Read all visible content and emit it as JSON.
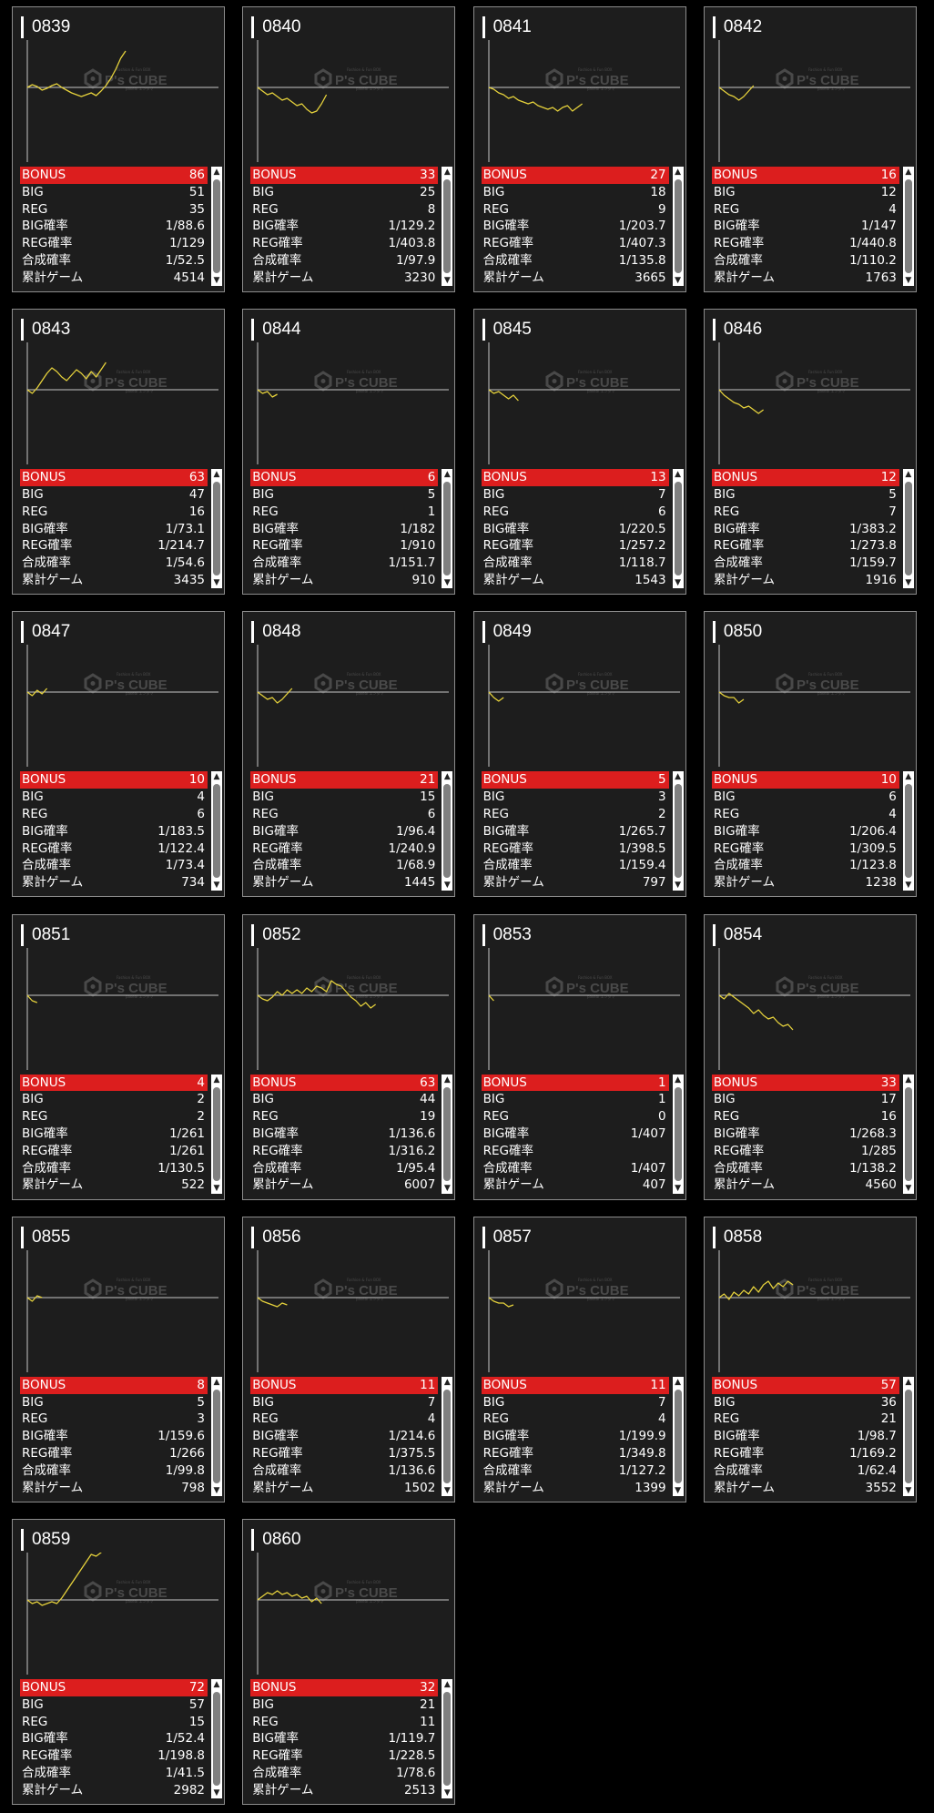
{
  "labels": {
    "bonus": "BONUS",
    "big": "BIG",
    "reg": "REG",
    "big_rate": "BIG確率",
    "reg_rate": "REG確率",
    "combined_rate": "合成確率",
    "total_games": "累計ゲーム"
  },
  "watermark": {
    "brand": "P's CUBE",
    "line1": "Fashion & Fun BOX",
    "line2": "pakeal エンタマ"
  },
  "colors": {
    "bonus_bar": "#dc1e1e",
    "line": "#e6d23c",
    "card_bg": "#1d1d1d",
    "baseline": "#c8c8c8"
  },
  "icons": {
    "scroll_up": "▲",
    "scroll_down": "▼"
  },
  "machines": [
    {
      "id": "0839",
      "bonus": "86",
      "big": "51",
      "reg": "35",
      "big_rate": "1/88.6",
      "reg_rate": "1/129",
      "combined_rate": "1/52.5",
      "total_games": "4514",
      "graph": [
        0,
        3,
        1,
        -3,
        -1,
        2,
        4,
        0,
        -3,
        -6,
        -8,
        -10,
        -8,
        -6,
        -9,
        -4,
        2,
        10,
        20,
        32,
        40
      ]
    },
    {
      "id": "0840",
      "bonus": "33",
      "big": "25",
      "reg": "8",
      "big_rate": "1/129.2",
      "reg_rate": "1/403.8",
      "combined_rate": "1/97.9",
      "total_games": "3230",
      "graph": [
        0,
        -4,
        -8,
        -6,
        -10,
        -14,
        -12,
        -16,
        -20,
        -18,
        -24,
        -28,
        -26,
        -18,
        -8
      ]
    },
    {
      "id": "0841",
      "bonus": "27",
      "big": "18",
      "reg": "9",
      "big_rate": "1/203.7",
      "reg_rate": "1/407.3",
      "combined_rate": "1/135.8",
      "total_games": "3665",
      "graph": [
        0,
        -2,
        -6,
        -8,
        -12,
        -10,
        -14,
        -16,
        -18,
        -16,
        -20,
        -22,
        -24,
        -22,
        -26,
        -22,
        -20,
        -26,
        -22,
        -18
      ]
    },
    {
      "id": "0842",
      "bonus": "16",
      "big": "12",
      "reg": "4",
      "big_rate": "1/147",
      "reg_rate": "1/440.8",
      "combined_rate": "1/110.2",
      "total_games": "1763",
      "graph": [
        0,
        -4,
        -8,
        -10,
        -14,
        -10,
        -4,
        2
      ]
    },
    {
      "id": "0843",
      "bonus": "63",
      "big": "47",
      "reg": "16",
      "big_rate": "1/73.1",
      "reg_rate": "1/214.7",
      "combined_rate": "1/54.6",
      "total_games": "3435",
      "graph": [
        0,
        -4,
        2,
        10,
        18,
        24,
        20,
        14,
        10,
        16,
        22,
        18,
        12,
        20,
        14,
        22,
        30
      ]
    },
    {
      "id": "0844",
      "bonus": "6",
      "big": "5",
      "reg": "1",
      "big_rate": "1/182",
      "reg_rate": "1/910",
      "combined_rate": "1/151.7",
      "total_games": "910",
      "graph": [
        0,
        -4,
        -2,
        -8,
        -5
      ]
    },
    {
      "id": "0845",
      "bonus": "13",
      "big": "7",
      "reg": "6",
      "big_rate": "1/220.5",
      "reg_rate": "1/257.2",
      "combined_rate": "1/118.7",
      "total_games": "1543",
      "graph": [
        0,
        -4,
        -2,
        -6,
        -10,
        -6,
        -12
      ]
    },
    {
      "id": "0846",
      "bonus": "12",
      "big": "5",
      "reg": "7",
      "big_rate": "1/383.2",
      "reg_rate": "1/273.8",
      "combined_rate": "1/159.7",
      "total_games": "1916",
      "graph": [
        0,
        -6,
        -10,
        -14,
        -16,
        -20,
        -18,
        -22,
        -26,
        -22
      ]
    },
    {
      "id": "0847",
      "bonus": "10",
      "big": "4",
      "reg": "6",
      "big_rate": "1/183.5",
      "reg_rate": "1/122.4",
      "combined_rate": "1/73.4",
      "total_games": "734",
      "graph": [
        0,
        -4,
        2,
        -2,
        4
      ]
    },
    {
      "id": "0848",
      "bonus": "21",
      "big": "15",
      "reg": "6",
      "big_rate": "1/96.4",
      "reg_rate": "1/240.9",
      "combined_rate": "1/68.9",
      "total_games": "1445",
      "graph": [
        0,
        -4,
        -8,
        -6,
        -12,
        -8,
        -2,
        4
      ]
    },
    {
      "id": "0849",
      "bonus": "5",
      "big": "3",
      "reg": "2",
      "big_rate": "1/265.7",
      "reg_rate": "1/398.5",
      "combined_rate": "1/159.4",
      "total_games": "797",
      "graph": [
        0,
        -6,
        -10,
        -6
      ]
    },
    {
      "id": "0850",
      "bonus": "10",
      "big": "6",
      "reg": "4",
      "big_rate": "1/206.4",
      "reg_rate": "1/309.5",
      "combined_rate": "1/123.8",
      "total_games": "1238",
      "graph": [
        0,
        -4,
        -6,
        -6,
        -12,
        -8
      ]
    },
    {
      "id": "0851",
      "bonus": "4",
      "big": "2",
      "reg": "2",
      "big_rate": "1/261",
      "reg_rate": "1/261",
      "combined_rate": "1/130.5",
      "total_games": "522",
      "graph": [
        0,
        -6,
        -8
      ]
    },
    {
      "id": "0852",
      "bonus": "63",
      "big": "44",
      "reg": "19",
      "big_rate": "1/136.6",
      "reg_rate": "1/316.2",
      "combined_rate": "1/95.4",
      "total_games": "6007",
      "graph": [
        0,
        -4,
        -6,
        -2,
        4,
        0,
        6,
        2,
        6,
        2,
        8,
        4,
        10,
        8,
        4,
        16,
        12,
        10,
        4,
        -2,
        -6,
        -12,
        -8,
        -14,
        -10
      ]
    },
    {
      "id": "0853",
      "bonus": "1",
      "big": "1",
      "reg": "0",
      "big_rate": "1/407",
      "reg_rate": "",
      "combined_rate": "1/407",
      "total_games": "407",
      "graph": [
        0,
        -6
      ]
    },
    {
      "id": "0854",
      "bonus": "33",
      "big": "17",
      "reg": "16",
      "big_rate": "1/268.3",
      "reg_rate": "1/285",
      "combined_rate": "1/138.2",
      "total_games": "4560",
      "graph": [
        0,
        -4,
        2,
        -2,
        -6,
        -10,
        -14,
        -20,
        -16,
        -22,
        -26,
        -24,
        -30,
        -34,
        -32,
        -38
      ]
    },
    {
      "id": "0855",
      "bonus": "8",
      "big": "5",
      "reg": "3",
      "big_rate": "1/159.6",
      "reg_rate": "1/266",
      "combined_rate": "1/99.8",
      "total_games": "798",
      "graph": [
        0,
        -4,
        2,
        0
      ]
    },
    {
      "id": "0856",
      "bonus": "11",
      "big": "7",
      "reg": "4",
      "big_rate": "1/214.6",
      "reg_rate": "1/375.5",
      "combined_rate": "1/136.6",
      "total_games": "1502",
      "graph": [
        0,
        -4,
        -6,
        -8,
        -10,
        -6,
        -8
      ]
    },
    {
      "id": "0857",
      "bonus": "11",
      "big": "7",
      "reg": "4",
      "big_rate": "1/199.9",
      "reg_rate": "1/349.8",
      "combined_rate": "1/127.2",
      "total_games": "1399",
      "graph": [
        0,
        -4,
        -6,
        -6,
        -10,
        -8
      ]
    },
    {
      "id": "0858",
      "bonus": "57",
      "big": "36",
      "reg": "21",
      "big_rate": "1/98.7",
      "reg_rate": "1/169.2",
      "combined_rate": "1/62.4",
      "total_games": "3552",
      "graph": [
        0,
        4,
        -2,
        6,
        2,
        8,
        4,
        12,
        6,
        14,
        18,
        10,
        16,
        12,
        18,
        14
      ]
    },
    {
      "id": "0859",
      "bonus": "72",
      "big": "57",
      "reg": "15",
      "big_rate": "1/52.4",
      "reg_rate": "1/198.8",
      "combined_rate": "1/41.5",
      "total_games": "2982",
      "graph": [
        0,
        -4,
        -2,
        -6,
        -4,
        -2,
        -4,
        2,
        10,
        18,
        26,
        34,
        42,
        50,
        48,
        52,
        60,
        58,
        64
      ]
    },
    {
      "id": "0860",
      "bonus": "32",
      "big": "21",
      "reg": "11",
      "big_rate": "1/119.7",
      "reg_rate": "1/228.5",
      "combined_rate": "1/78.6",
      "total_games": "2513",
      "graph": [
        0,
        4,
        8,
        6,
        10,
        6,
        8,
        4,
        6,
        2,
        4,
        -2,
        2,
        -4
      ]
    }
  ]
}
